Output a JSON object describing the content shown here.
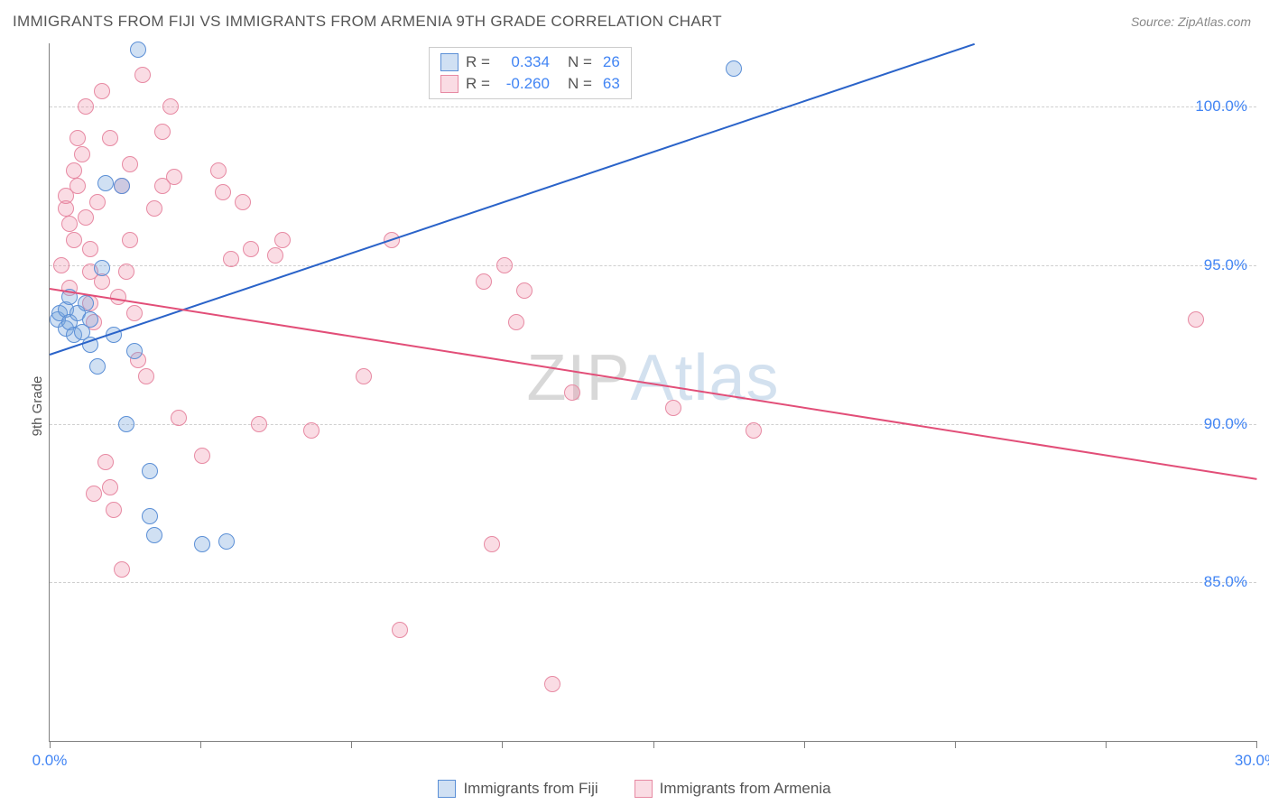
{
  "header": {
    "title": "IMMIGRANTS FROM FIJI VS IMMIGRANTS FROM ARMENIA 9TH GRADE CORRELATION CHART",
    "source": "Source: ZipAtlas.com"
  },
  "axes": {
    "ylabel": "9th Grade",
    "xlim": [
      0,
      30
    ],
    "ylim": [
      80,
      102
    ],
    "yticks": [
      85.0,
      90.0,
      95.0,
      100.0
    ],
    "ytick_labels": [
      "85.0%",
      "90.0%",
      "95.0%",
      "100.0%"
    ],
    "xtick_positions": [
      0,
      3.75,
      7.5,
      11.25,
      15,
      18.75,
      22.5,
      26.25,
      30
    ],
    "xstart_label": "0.0%",
    "xend_label": "30.0%"
  },
  "series": {
    "fiji": {
      "label": "Immigrants from Fiji",
      "fill": "rgba(120,165,220,0.35)",
      "stroke": "#5b8fd6",
      "line_color": "#2a63c9",
      "R": "0.334",
      "N": "26",
      "line": {
        "x1": 0,
        "y1": 92.2,
        "x2": 23,
        "y2": 102
      },
      "points": [
        [
          0.2,
          93.3
        ],
        [
          0.25,
          93.5
        ],
        [
          0.4,
          93.0
        ],
        [
          0.4,
          93.6
        ],
        [
          0.5,
          94.0
        ],
        [
          0.5,
          93.2
        ],
        [
          0.6,
          92.8
        ],
        [
          0.7,
          93.5
        ],
        [
          0.8,
          92.9
        ],
        [
          0.9,
          93.8
        ],
        [
          1.0,
          93.3
        ],
        [
          1.0,
          92.5
        ],
        [
          1.3,
          94.9
        ],
        [
          1.2,
          91.8
        ],
        [
          1.4,
          97.6
        ],
        [
          1.8,
          97.5
        ],
        [
          1.6,
          92.8
        ],
        [
          1.9,
          90.0
        ],
        [
          2.1,
          92.3
        ],
        [
          2.2,
          101.8
        ],
        [
          2.5,
          88.5
        ],
        [
          2.5,
          87.1
        ],
        [
          2.6,
          86.5
        ],
        [
          3.8,
          86.2
        ],
        [
          4.4,
          86.3
        ],
        [
          17.0,
          101.2
        ]
      ]
    },
    "armenia": {
      "label": "Immigrants from Armenia",
      "fill": "rgba(240,140,165,0.30)",
      "stroke": "#e78aa3",
      "line_color": "#e24e78",
      "R": "-0.260",
      "N": "63",
      "line": {
        "x1": 0,
        "y1": 94.3,
        "x2": 30,
        "y2": 88.3
      },
      "points": [
        [
          0.4,
          96.8
        ],
        [
          0.4,
          97.2
        ],
        [
          0.5,
          96.3
        ],
        [
          0.6,
          95.8
        ],
        [
          0.6,
          98.0
        ],
        [
          0.7,
          97.5
        ],
        [
          0.7,
          99.0
        ],
        [
          0.8,
          98.5
        ],
        [
          0.9,
          100.0
        ],
        [
          0.9,
          96.5
        ],
        [
          1.0,
          95.5
        ],
        [
          1.0,
          94.8
        ],
        [
          1.0,
          93.8
        ],
        [
          1.1,
          93.2
        ],
        [
          1.2,
          97.0
        ],
        [
          1.3,
          94.5
        ],
        [
          1.3,
          100.5
        ],
        [
          1.5,
          88.0
        ],
        [
          1.5,
          99.0
        ],
        [
          1.6,
          87.3
        ],
        [
          1.7,
          94.0
        ],
        [
          1.8,
          97.5
        ],
        [
          1.8,
          85.4
        ],
        [
          2.0,
          95.8
        ],
        [
          2.0,
          98.2
        ],
        [
          2.2,
          92.0
        ],
        [
          2.3,
          101.0
        ],
        [
          2.4,
          91.5
        ],
        [
          2.6,
          96.8
        ],
        [
          2.8,
          99.2
        ],
        [
          3.0,
          100.0
        ],
        [
          3.1,
          97.8
        ],
        [
          3.2,
          90.2
        ],
        [
          3.8,
          89.0
        ],
        [
          4.2,
          98.0
        ],
        [
          4.3,
          97.3
        ],
        [
          4.5,
          95.2
        ],
        [
          4.8,
          97.0
        ],
        [
          5.0,
          95.5
        ],
        [
          5.2,
          90.0
        ],
        [
          5.6,
          95.3
        ],
        [
          5.8,
          95.8
        ],
        [
          6.5,
          89.8
        ],
        [
          7.8,
          91.5
        ],
        [
          8.5,
          95.8
        ],
        [
          8.7,
          83.5
        ],
        [
          10.8,
          94.5
        ],
        [
          11.0,
          86.2
        ],
        [
          11.3,
          95.0
        ],
        [
          11.6,
          93.2
        ],
        [
          11.8,
          94.2
        ],
        [
          12.5,
          81.8
        ],
        [
          13.0,
          91.0
        ],
        [
          15.5,
          90.5
        ],
        [
          17.5,
          89.8
        ],
        [
          28.5,
          93.3
        ],
        [
          1.1,
          87.8
        ],
        [
          1.4,
          88.8
        ],
        [
          2.1,
          93.5
        ],
        [
          0.3,
          95.0
        ],
        [
          0.5,
          94.3
        ],
        [
          2.8,
          97.5
        ],
        [
          1.9,
          94.8
        ]
      ]
    }
  },
  "legend_box": {
    "rows": [
      {
        "swatch": "fiji",
        "r_label": "R =",
        "r_val": "0.334",
        "n_label": "N =",
        "n_val": "26"
      },
      {
        "swatch": "armenia",
        "r_label": "R =",
        "r_val": "-0.260",
        "n_label": "N =",
        "n_val": "63"
      }
    ]
  },
  "watermark": {
    "z": "ZIP",
    "rest": "Atlas"
  },
  "colors": {
    "grid": "#cfcfcf",
    "axis": "#808080",
    "tick_text": "#4285f4",
    "title_text": "#555555"
  }
}
